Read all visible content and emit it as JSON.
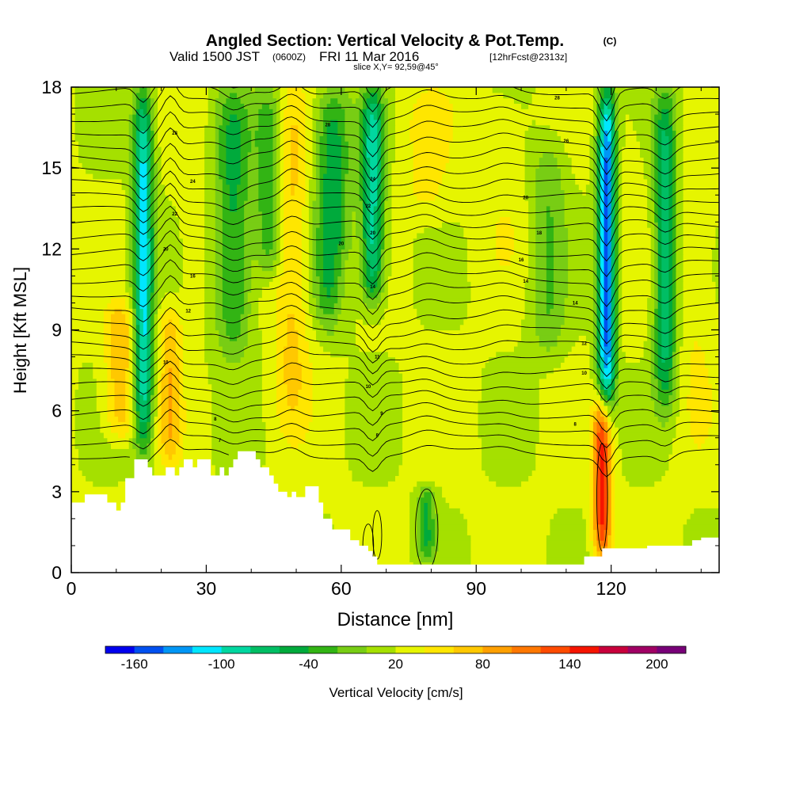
{
  "header": {
    "title": "Angled Section: Vertical Velocity & Pot.Temp.",
    "copyright": "(C)",
    "valid_main": "Valid 1500 JST",
    "valid_utc": "(0600Z)",
    "valid_date": "FRI 11 Mar 2016",
    "forecast": "[12hrFcst@2313z]",
    "slice": "slice X,Y= 92,59@45°"
  },
  "chart_data": {
    "type": "heatmap",
    "title": "Angled Section: Vertical Velocity & Pot.Temp.",
    "xlabel": "Distance [nm]",
    "ylabel": "Height [Kft MSL]",
    "xlim": [
      0,
      144
    ],
    "ylim": [
      0,
      18
    ],
    "x_ticks": [
      0,
      30,
      60,
      90,
      120
    ],
    "y_ticks": [
      0,
      3,
      6,
      9,
      12,
      15,
      18
    ],
    "vmin": -180,
    "vmax": 220,
    "colorbar": {
      "label": "Vertical Velocity [cm/s]",
      "tick_labels": [
        -160,
        -100,
        -40,
        20,
        80,
        140,
        200
      ],
      "colors": [
        "#0000ee",
        "#0050f0",
        "#0096f5",
        "#00e6ff",
        "#00d7a0",
        "#00be64",
        "#00aa3c",
        "#32b414",
        "#78cd14",
        "#a5e000",
        "#e6f500",
        "#ffe600",
        "#ffc800",
        "#ffa000",
        "#ff7800",
        "#ff4b00",
        "#f51400",
        "#c8003c",
        "#a00064",
        "#780078"
      ]
    },
    "terrain_profile": {
      "distance_nm": [
        0,
        3,
        5,
        7,
        8,
        9,
        10,
        11,
        12,
        14,
        15,
        17,
        18,
        20,
        21,
        23,
        24,
        25,
        26,
        27,
        28,
        30,
        31,
        33,
        34,
        35,
        36,
        37,
        38,
        39,
        40,
        41,
        42,
        44,
        45,
        46,
        47,
        48,
        49,
        50,
        51,
        52,
        53,
        55,
        56,
        58,
        60,
        62,
        64,
        66,
        67,
        68,
        70,
        72,
        75,
        78,
        81,
        84,
        87,
        90,
        93,
        96,
        99,
        102,
        105,
        108,
        111,
        112,
        114,
        116,
        118,
        119,
        120,
        121,
        122,
        124,
        126,
        128,
        130,
        132,
        134,
        136,
        138,
        140,
        142,
        144
      ],
      "height_kft": [
        2.6,
        2.9,
        2.9,
        2.9,
        2.6,
        2.6,
        2.3,
        2.6,
        3.5,
        4.2,
        4.2,
        3.9,
        3.6,
        3.6,
        3.9,
        3.6,
        3.9,
        4.2,
        4.2,
        3.9,
        4.2,
        4.2,
        3.6,
        3.9,
        3.6,
        3.9,
        4.2,
        4.5,
        4.5,
        4.5,
        4.5,
        4.2,
        3.9,
        3.6,
        3.3,
        3.0,
        3.0,
        2.8,
        3.0,
        2.8,
        2.8,
        3.2,
        3.2,
        2.6,
        2.0,
        1.6,
        1.6,
        1.2,
        1.0,
        0.8,
        0.6,
        0.3,
        0.3,
        0.3,
        0.3,
        0.3,
        0.3,
        0.3,
        0.3,
        0.3,
        0.3,
        0.3,
        0.3,
        0.3,
        0.3,
        0.3,
        0.3,
        0.3,
        0.6,
        0.6,
        0.9,
        0.9,
        0.9,
        0.9,
        0.9,
        0.9,
        0.9,
        1.0,
        1.0,
        1.0,
        1.0,
        1.0,
        1.2,
        1.3,
        1.3,
        1.3
      ]
    },
    "velocity_features": [
      {
        "x_nm": 16,
        "width_nm": 2.2,
        "z_range_kft": [
          4.5,
          18
        ],
        "peak_cm_s": -110
      },
      {
        "x_nm": 11,
        "width_nm": 3.5,
        "z_range_kft": [
          5,
          10
        ],
        "peak_cm_s": 80
      },
      {
        "x_nm": 22,
        "width_nm": 2.5,
        "z_range_kft": [
          4,
          10
        ],
        "peak_cm_s": 75
      },
      {
        "x_nm": 27,
        "width_nm": 3,
        "z_range_kft": [
          9,
          18
        ],
        "peak_cm_s": 35
      },
      {
        "x_nm": 36,
        "width_nm": 4,
        "z_range_kft": [
          8,
          18
        ],
        "peak_cm_s": -45
      },
      {
        "x_nm": 44,
        "width_nm": 3,
        "z_range_kft": [
          11,
          18
        ],
        "peak_cm_s": -40
      },
      {
        "x_nm": 49,
        "width_nm": 4,
        "z_range_kft": [
          5,
          18
        ],
        "peak_cm_s": 65
      },
      {
        "x_nm": 58,
        "width_nm": 4,
        "z_range_kft": [
          9,
          18
        ],
        "peak_cm_s": -55
      },
      {
        "x_nm": 67,
        "width_nm": 2.5,
        "z_range_kft": [
          10,
          18
        ],
        "peak_cm_s": -90
      },
      {
        "x_nm": 60,
        "width_nm": 2.5,
        "z_range_kft": [
          9,
          12
        ],
        "peak_cm_s": 45
      },
      {
        "x_nm": 79,
        "width_nm": 6,
        "z_range_kft": [
          13,
          18
        ],
        "peak_cm_s": 45
      },
      {
        "x_nm": 79,
        "width_nm": 2,
        "z_range_kft": [
          0.5,
          3.2
        ],
        "peak_cm_s": -40
      },
      {
        "x_nm": 96,
        "width_nm": 6,
        "z_range_kft": [
          11,
          18
        ],
        "peak_cm_s": 35
      },
      {
        "x_nm": 106,
        "width_nm": 4,
        "z_range_kft": [
          8,
          16
        ],
        "peak_cm_s": -20
      },
      {
        "x_nm": 119,
        "width_nm": 2,
        "z_range_kft": [
          6,
          18
        ],
        "peak_cm_s": -150
      },
      {
        "x_nm": 118,
        "width_nm": 2,
        "z_range_kft": [
          0.5,
          6.5
        ],
        "peak_cm_s": 145
      },
      {
        "x_nm": 124,
        "width_nm": 4,
        "z_range_kft": [
          8,
          18
        ],
        "peak_cm_s": 30
      },
      {
        "x_nm": 132,
        "width_nm": 2.5,
        "z_range_kft": [
          6,
          18
        ],
        "peak_cm_s": -70
      },
      {
        "x_nm": 139,
        "width_nm": 4,
        "z_range_kft": [
          4,
          16
        ],
        "peak_cm_s": 40
      }
    ],
    "theta_contour_labels": [
      {
        "text": "28",
        "x_nm": 108,
        "z_kft": 17.6
      },
      {
        "text": "28",
        "x_nm": 57,
        "z_kft": 16.6
      },
      {
        "text": "28",
        "x_nm": 23,
        "z_kft": 16.3
      },
      {
        "text": "26",
        "x_nm": 110,
        "z_kft": 16.0
      },
      {
        "text": "24",
        "x_nm": 27,
        "z_kft": 14.5
      },
      {
        "text": "24",
        "x_nm": 67,
        "z_kft": 14.6
      },
      {
        "text": "22",
        "x_nm": 23,
        "z_kft": 13.3
      },
      {
        "text": "22",
        "x_nm": 66,
        "z_kft": 13.6
      },
      {
        "text": "20",
        "x_nm": 101,
        "z_kft": 13.9
      },
      {
        "text": "20",
        "x_nm": 21,
        "z_kft": 12.0
      },
      {
        "text": "20",
        "x_nm": 60,
        "z_kft": 12.2
      },
      {
        "text": "20",
        "x_nm": 67,
        "z_kft": 12.6
      },
      {
        "text": "18",
        "x_nm": 104,
        "z_kft": 12.6
      },
      {
        "text": "16",
        "x_nm": 100,
        "z_kft": 11.6
      },
      {
        "text": "16",
        "x_nm": 27,
        "z_kft": 11.0
      },
      {
        "text": "14",
        "x_nm": 101,
        "z_kft": 10.8
      },
      {
        "text": "14",
        "x_nm": 67,
        "z_kft": 10.6
      },
      {
        "text": "14",
        "x_nm": 112,
        "z_kft": 10.0
      },
      {
        "text": "12",
        "x_nm": 26,
        "z_kft": 9.7
      },
      {
        "text": "12",
        "x_nm": 114,
        "z_kft": 8.5
      },
      {
        "text": "11",
        "x_nm": 68,
        "z_kft": 8.0
      },
      {
        "text": "10",
        "x_nm": 21,
        "z_kft": 7.8
      },
      {
        "text": "10",
        "x_nm": 114,
        "z_kft": 7.4
      },
      {
        "text": "10",
        "x_nm": 66,
        "z_kft": 6.9
      },
      {
        "text": "9",
        "x_nm": 69,
        "z_kft": 5.9
      },
      {
        "text": "8",
        "x_nm": 32,
        "z_kft": 5.7
      },
      {
        "text": "8",
        "x_nm": 112,
        "z_kft": 5.5
      },
      {
        "text": "8",
        "x_nm": 68,
        "z_kft": 5.1
      },
      {
        "text": "7",
        "x_nm": 33,
        "z_kft": 4.9
      }
    ]
  }
}
